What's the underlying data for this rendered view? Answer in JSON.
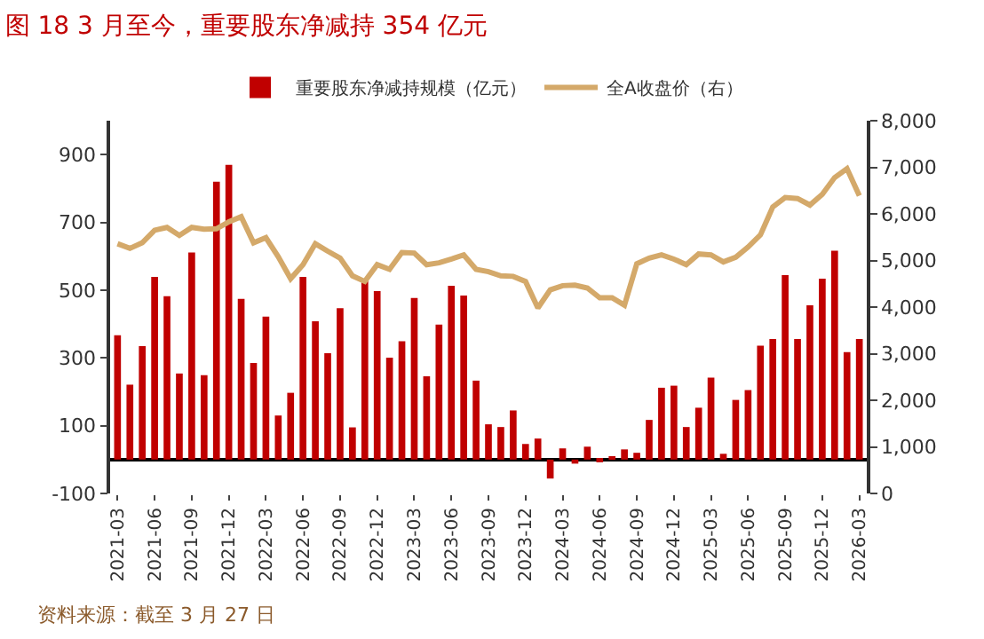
{
  "chart_data": {
    "type": "bar",
    "title": "图 18 3 月至今，重要股东净减持 354 亿元",
    "categories": [
      "2021-03",
      null,
      null,
      "2021-06",
      null,
      null,
      "2021-09",
      null,
      null,
      "2021-12",
      null,
      null,
      "2022-03",
      null,
      null,
      "2022-06",
      null,
      null,
      "2022-09",
      null,
      null,
      "2022-12",
      null,
      null,
      "2023-03",
      null,
      null,
      "2023-06",
      null,
      null,
      "2023-09",
      null,
      null,
      "2023-12",
      null,
      null,
      "2024-03",
      null,
      null,
      "2024-06",
      null,
      null,
      "2024-09",
      null,
      null,
      "2024-12",
      null,
      null,
      "2025-03",
      null,
      null,
      "2025-06",
      null,
      null,
      "2025-09",
      null,
      null,
      "2025-12",
      null,
      null,
      "2026-03"
    ],
    "series": [
      {
        "name": "重要股东净减持规模（亿元）",
        "color": "#c00000",
        "values": [
          367,
          221,
          335,
          539,
          482,
          254,
          611,
          249,
          820,
          870,
          474,
          285,
          422,
          130,
          197,
          539,
          408,
          314,
          447,
          95,
          529,
          497,
          301,
          349,
          477,
          246,
          398,
          513,
          484,
          233,
          104,
          96,
          145,
          46,
          62,
          -56,
          33,
          -12,
          38,
          -8,
          5,
          30,
          20,
          117,
          212,
          218,
          96,
          153,
          242,
          17,
          176,
          205,
          336,
          356,
          544,
          356,
          455,
          534,
          616,
          317,
          356
        ]
      },
      {
        "name": "全A收盘价（右）",
        "type": "line",
        "axis": "y2",
        "color": "#d4a96a",
        "values": [
          5360,
          5260,
          5380,
          5650,
          5710,
          5540,
          5710,
          5670,
          5680,
          5830,
          5940,
          5380,
          5490,
          5080,
          4610,
          4910,
          5360,
          5200,
          5050,
          4670,
          4550,
          4910,
          4810,
          5170,
          5160,
          4910,
          4950,
          5030,
          5120,
          4810,
          4760,
          4670,
          4660,
          4550,
          3980,
          4370,
          4460,
          4470,
          4410,
          4200,
          4200,
          4040,
          4930,
          5050,
          5120,
          5030,
          4910,
          5140,
          5120,
          4970,
          5070,
          5290,
          5550,
          6150,
          6350,
          6330,
          6190,
          6420,
          6780,
          6970,
          6390
        ]
      }
    ],
    "ylim": [
      -100,
      1000
    ],
    "yticks": [
      -100,
      100,
      300,
      500,
      700,
      900
    ],
    "y2lim": [
      0,
      8000
    ],
    "y2ticks": [
      0,
      {
        "value": 1000,
        "label": "1,000"
      },
      {
        "value": 2000,
        "label": "2,000"
      },
      {
        "value": 3000,
        "label": "3,000"
      },
      {
        "value": 4000,
        "label": "4,000"
      },
      {
        "value": 5000,
        "label": "5,000"
      },
      {
        "value": 6000,
        "label": "6,000"
      },
      {
        "value": 7000,
        "label": "7,000"
      },
      {
        "value": 8000,
        "label": "8,000"
      }
    ],
    "legend": "top",
    "marker": "none",
    "line_style": "solid",
    "annotations": [
      "资料来源：截至 3 月 27 日"
    ]
  }
}
